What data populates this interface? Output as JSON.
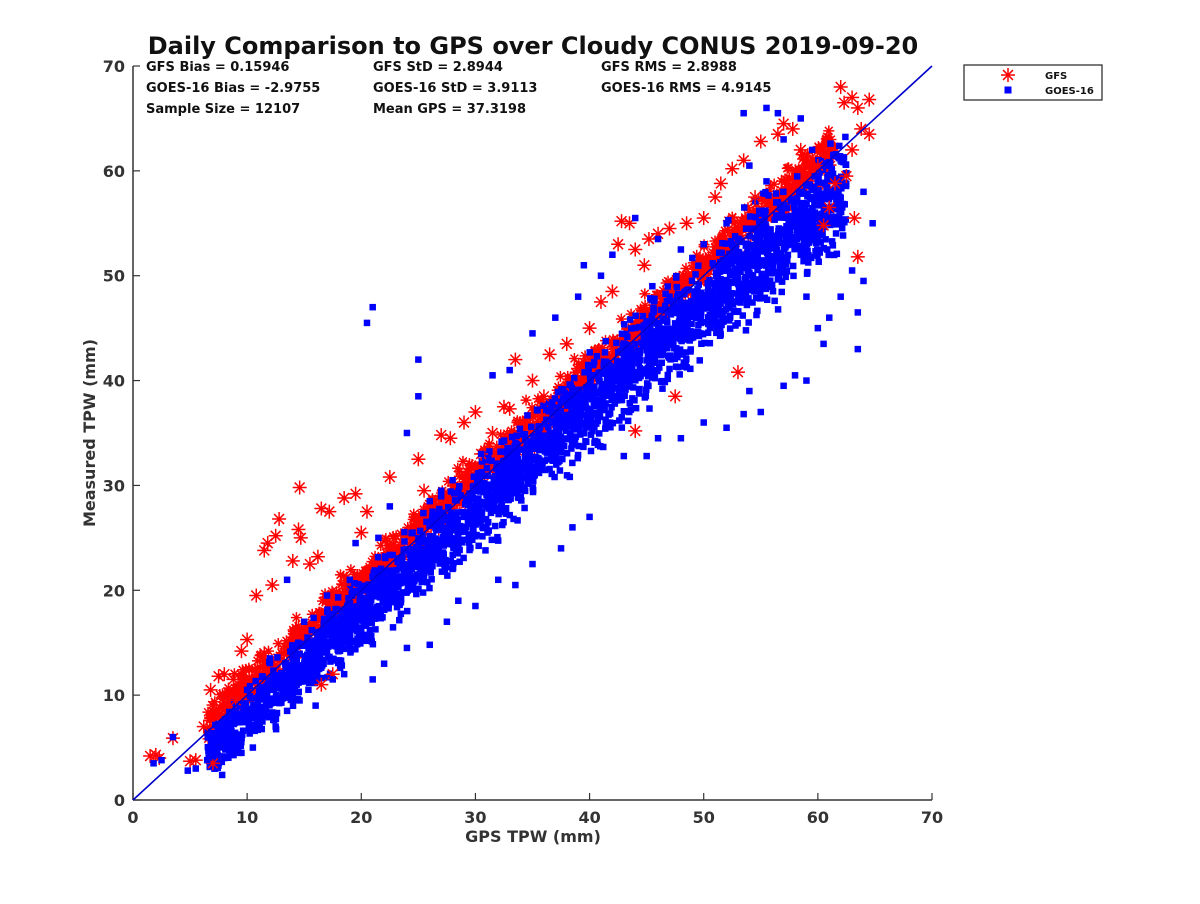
{
  "chart_data": {
    "type": "scatter",
    "title": "Daily Comparison to GPS over Cloudy CONUS 2019-09-20",
    "xlabel": "GPS TPW (mm)",
    "ylabel": "Measured TPW (mm)",
    "xlim": [
      0,
      70
    ],
    "ylim": [
      0,
      70
    ],
    "xticks": [
      "0",
      "10",
      "20",
      "30",
      "40",
      "50",
      "60",
      "70"
    ],
    "yticks": [
      "0",
      "10",
      "20",
      "30",
      "40",
      "50",
      "60",
      "70"
    ],
    "grid": false,
    "legend_position": "top-right outside",
    "reference_line": {
      "x": [
        0,
        70
      ],
      "y": [
        0,
        70
      ],
      "color": "#0000cc"
    },
    "stats": [
      [
        "GFS Bias = 0.15946",
        "GFS StD = 2.8944",
        "GFS RMS = 2.8988"
      ],
      [
        "GOES-16 Bias = -2.9755",
        "GOES-16 StD = 3.9113",
        "GOES-16 RMS = 4.9145"
      ],
      [
        "Sample Size = 12107",
        "Mean GPS = 37.3198",
        ""
      ]
    ],
    "series": [
      {
        "name": "GFS",
        "marker": "asterisk",
        "color": "#ff0000",
        "points": [
          [
            1.5,
            4.2
          ],
          [
            2.0,
            4.3
          ],
          [
            2.3,
            4.0
          ],
          [
            3.5,
            5.9
          ],
          [
            5.0,
            3.7
          ],
          [
            5.5,
            3.8
          ],
          [
            6.2,
            7.0
          ],
          [
            7.0,
            3.5
          ],
          [
            6.8,
            10.5
          ],
          [
            7.5,
            11.8
          ],
          [
            8.0,
            12.0
          ],
          [
            8.8,
            11.5
          ],
          [
            9.5,
            14.2
          ],
          [
            10.0,
            15.3
          ],
          [
            10.8,
            19.5
          ],
          [
            11.5,
            23.8
          ],
          [
            11.8,
            24.5
          ],
          [
            12.2,
            20.5
          ],
          [
            12.5,
            25.2
          ],
          [
            12.8,
            26.8
          ],
          [
            14.0,
            22.8
          ],
          [
            14.5,
            25.8
          ],
          [
            14.7,
            25.0
          ],
          [
            14.6,
            29.8
          ],
          [
            15.5,
            22.5
          ],
          [
            16.2,
            23.2
          ],
          [
            16.5,
            27.8
          ],
          [
            17.2,
            27.5
          ],
          [
            18.5,
            28.8
          ],
          [
            19.5,
            29.2
          ],
          [
            20.5,
            27.5
          ],
          [
            22.5,
            30.8
          ],
          [
            25.0,
            32.5
          ],
          [
            27.0,
            34.8
          ],
          [
            27.8,
            34.5
          ],
          [
            29.0,
            36.0
          ],
          [
            30.0,
            37.0
          ],
          [
            31.5,
            35.0
          ],
          [
            32.5,
            37.5
          ],
          [
            33.0,
            37.3
          ],
          [
            33.5,
            42.0
          ],
          [
            35.0,
            40.0
          ],
          [
            36.5,
            42.5
          ],
          [
            38.0,
            43.5
          ],
          [
            40.0,
            45.0
          ],
          [
            41.0,
            47.5
          ],
          [
            42.0,
            48.5
          ],
          [
            42.8,
            55.2
          ],
          [
            43.5,
            55.0
          ],
          [
            42.5,
            53.0
          ],
          [
            44.0,
            52.5
          ],
          [
            44.8,
            51.0
          ],
          [
            45.2,
            53.5
          ],
          [
            46.0,
            54.0
          ],
          [
            47.0,
            54.5
          ],
          [
            48.5,
            55.0
          ],
          [
            50.0,
            55.5
          ],
          [
            51.0,
            57.5
          ],
          [
            51.5,
            58.8
          ],
          [
            52.5,
            60.2
          ],
          [
            53.5,
            61.0
          ],
          [
            54.5,
            57.5
          ],
          [
            55.0,
            62.8
          ],
          [
            56.5,
            63.5
          ],
          [
            57.0,
            64.5
          ],
          [
            57.8,
            64.0
          ],
          [
            58.5,
            62.0
          ],
          [
            59.0,
            61.0
          ],
          [
            60.0,
            60.5
          ],
          [
            61.0,
            56.5
          ],
          [
            61.5,
            58.8
          ],
          [
            62.0,
            68.0
          ],
          [
            62.3,
            66.5
          ],
          [
            63.0,
            67.0
          ],
          [
            63.5,
            66.0
          ],
          [
            64.5,
            66.8
          ],
          [
            63.8,
            64.0
          ],
          [
            64.5,
            63.5
          ],
          [
            63.0,
            62.0
          ],
          [
            63.2,
            55.5
          ],
          [
            63.5,
            51.8
          ],
          [
            62.5,
            59.5
          ],
          [
            60.5,
            54.8
          ],
          [
            53.0,
            40.8
          ],
          [
            44.0,
            35.2
          ],
          [
            47.5,
            38.5
          ],
          [
            36.0,
            38.5
          ],
          [
            30.5,
            33.0
          ],
          [
            25.5,
            29.5
          ],
          [
            20.0,
            25.5
          ],
          [
            18.5,
            20.5
          ],
          [
            17.5,
            12.0
          ],
          [
            16.5,
            11.0
          ],
          [
            11.5,
            14.0
          ],
          [
            9.0,
            9.5
          ]
        ]
      },
      {
        "name": "GOES-16",
        "marker": "square",
        "color": "#0000ff",
        "points": [
          [
            1.8,
            3.5
          ],
          [
            2.5,
            3.8
          ],
          [
            3.5,
            6.0
          ],
          [
            4.8,
            2.8
          ],
          [
            5.5,
            3.0
          ],
          [
            6.5,
            3.8
          ],
          [
            7.0,
            4.2
          ],
          [
            8.0,
            4.0
          ],
          [
            9.5,
            4.5
          ],
          [
            10.5,
            5.0
          ],
          [
            12.5,
            7.0
          ],
          [
            13.5,
            8.5
          ],
          [
            16.0,
            9.0
          ],
          [
            17.5,
            11.5
          ],
          [
            18.5,
            12.0
          ],
          [
            21.0,
            11.5
          ],
          [
            22.0,
            13.0
          ],
          [
            24.0,
            14.5
          ],
          [
            26.0,
            14.8
          ],
          [
            27.5,
            17.0
          ],
          [
            28.5,
            19.0
          ],
          [
            30.0,
            18.5
          ],
          [
            32.0,
            21.0
          ],
          [
            33.5,
            20.5
          ],
          [
            35.0,
            22.5
          ],
          [
            37.5,
            24.0
          ],
          [
            38.5,
            26.0
          ],
          [
            40.0,
            27.0
          ],
          [
            43.0,
            32.8
          ],
          [
            45.0,
            32.8
          ],
          [
            46.0,
            34.5
          ],
          [
            48.0,
            34.5
          ],
          [
            50.0,
            36.0
          ],
          [
            52.0,
            35.5
          ],
          [
            53.5,
            36.8
          ],
          [
            54.0,
            39.0
          ],
          [
            55.0,
            37.0
          ],
          [
            57.0,
            39.5
          ],
          [
            58.0,
            40.5
          ],
          [
            59.0,
            40.0
          ],
          [
            60.5,
            43.5
          ],
          [
            63.5,
            43.0
          ],
          [
            63.5,
            46.5
          ],
          [
            64.0,
            49.5
          ],
          [
            64.8,
            55.0
          ],
          [
            64.0,
            58.0
          ],
          [
            63.0,
            50.5
          ],
          [
            62.0,
            48.0
          ],
          [
            61.0,
            46.0
          ],
          [
            60.0,
            45.0
          ],
          [
            59.0,
            48.0
          ],
          [
            58.5,
            52.0
          ],
          [
            57.5,
            54.5
          ],
          [
            56.5,
            57.0
          ],
          [
            55.5,
            59.0
          ],
          [
            54.0,
            60.5
          ],
          [
            53.5,
            65.5
          ],
          [
            55.5,
            66.0
          ],
          [
            56.5,
            65.5
          ],
          [
            57.0,
            63.0
          ],
          [
            58.5,
            65.0
          ],
          [
            59.5,
            62.0
          ],
          [
            60.0,
            59.0
          ],
          [
            61.0,
            58.0
          ],
          [
            62.0,
            61.0
          ],
          [
            20.5,
            45.5
          ],
          [
            21.0,
            47.0
          ],
          [
            25.0,
            42.0
          ],
          [
            31.5,
            40.5
          ],
          [
            33.0,
            41.0
          ],
          [
            35.0,
            44.5
          ],
          [
            37.0,
            46.0
          ],
          [
            39.0,
            48.0
          ],
          [
            39.5,
            51.0
          ],
          [
            41.0,
            50.0
          ],
          [
            42.0,
            52.0
          ],
          [
            44.0,
            55.5
          ],
          [
            46.0,
            53.5
          ],
          [
            48.0,
            52.5
          ],
          [
            50.0,
            53.0
          ],
          [
            52.0,
            55.0
          ],
          [
            14.5,
            15.0
          ],
          [
            15.0,
            17.0
          ],
          [
            13.5,
            21.0
          ],
          [
            19.0,
            21.0
          ],
          [
            21.5,
            25.0
          ],
          [
            24.5,
            25.5
          ],
          [
            26.0,
            28.5
          ],
          [
            28.0,
            30.5
          ],
          [
            30.5,
            33.0
          ],
          [
            35.5,
            35.0
          ],
          [
            38.0,
            38.0
          ],
          [
            40.5,
            40.5
          ],
          [
            43.5,
            43.0
          ],
          [
            46.0,
            45.0
          ],
          [
            48.5,
            46.5
          ],
          [
            51.0,
            49.0
          ],
          [
            53.0,
            50.5
          ],
          [
            25.0,
            38.5
          ],
          [
            24.0,
            35.0
          ],
          [
            27.0,
            29.5
          ],
          [
            22.5,
            28.0
          ],
          [
            19.5,
            24.5
          ],
          [
            17.0,
            19.5
          ],
          [
            12.0,
            13.5
          ],
          [
            10.0,
            10.5
          ],
          [
            8.5,
            8.0
          ],
          [
            7.5,
            6.5
          ],
          [
            45.5,
            49.0
          ],
          [
            47.0,
            48.0
          ],
          [
            34.0,
            31.5
          ],
          [
            29.0,
            27.0
          ],
          [
            23.5,
            22.5
          ]
        ]
      }
    ]
  }
}
